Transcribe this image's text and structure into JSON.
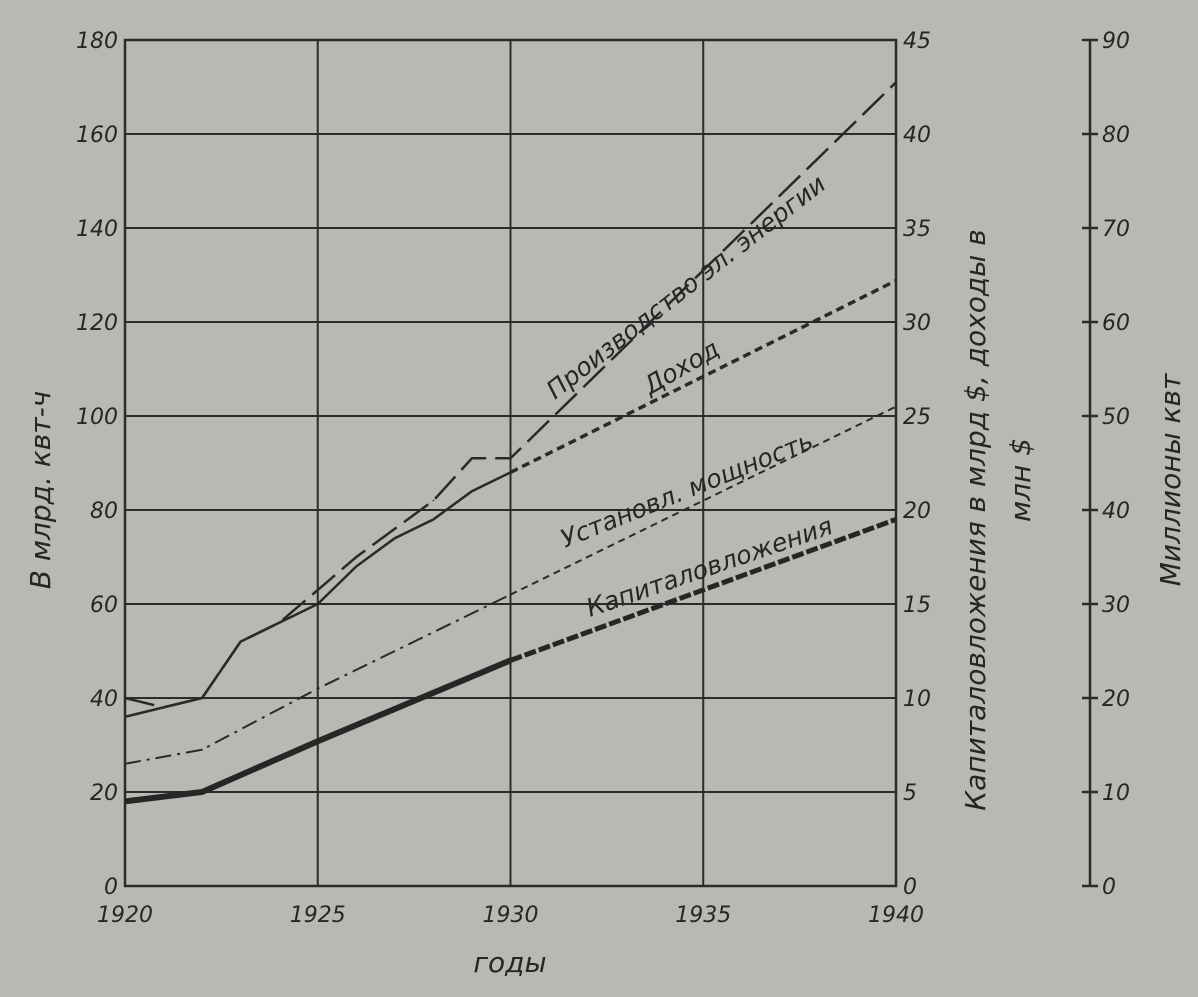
{
  "chart_data": {
    "type": "line",
    "xlabel": "годы",
    "x_ticks": [
      1920,
      1925,
      1930,
      1935,
      1940
    ],
    "xlim": [
      1920,
      1940
    ],
    "grid": true,
    "axes": [
      {
        "id": "y1",
        "side": "left",
        "label": "В млрд. квт-ч",
        "ylim": [
          0,
          180
        ],
        "ticks": [
          0,
          20,
          40,
          60,
          80,
          100,
          120,
          140,
          160,
          180
        ]
      },
      {
        "id": "y2",
        "side": "right-inner",
        "label": "Капиталовложения в млрд $, доходы в млн $",
        "label_lines": [
          "Капиталовложения в млрд $, доходы в",
          "млн $"
        ],
        "ylim": [
          0,
          45
        ],
        "ticks": [
          0,
          5,
          10,
          15,
          20,
          25,
          30,
          35,
          40,
          45
        ]
      },
      {
        "id": "y3",
        "side": "right-outer",
        "label": "Миллионы квт",
        "ylim": [
          0,
          90
        ],
        "ticks": [
          0,
          10,
          20,
          30,
          40,
          50,
          60,
          70,
          80,
          90
        ]
      }
    ],
    "series": [
      {
        "name": "Производство эл. энергии",
        "axis": "y1",
        "style": "long-dash",
        "x": [
          1920,
          1921,
          1922,
          1923,
          1924,
          1925,
          1926,
          1927,
          1928,
          1929,
          1930,
          1940
        ],
        "values": [
          40,
          38,
          40,
          52,
          56,
          63,
          70,
          76,
          82,
          91,
          91,
          171
        ]
      },
      {
        "name": "Доход",
        "axis": "y2",
        "style": "solid-then-dashed",
        "x": [
          1920,
          1921,
          1922,
          1923,
          1924,
          1925,
          1926,
          1927,
          1928,
          1929,
          1930,
          1940
        ],
        "values": [
          9,
          9.5,
          10,
          13,
          14,
          15,
          17,
          18.5,
          19.5,
          21,
          22,
          32.2
        ]
      },
      {
        "name": "Установл. мощность",
        "axis": "y3",
        "style": "dash-dot-then-dashed",
        "x": [
          1920,
          1922,
          1925,
          1930,
          1940
        ],
        "values": [
          13,
          14.5,
          21,
          31,
          51
        ]
      },
      {
        "name": "Капиталовложения",
        "axis": "y2",
        "style": "thick-solid-then-dashed",
        "x": [
          1920,
          1922,
          1925,
          1930,
          1940
        ],
        "values": [
          4.5,
          5,
          7.7,
          12,
          19.5
        ]
      }
    ]
  }
}
